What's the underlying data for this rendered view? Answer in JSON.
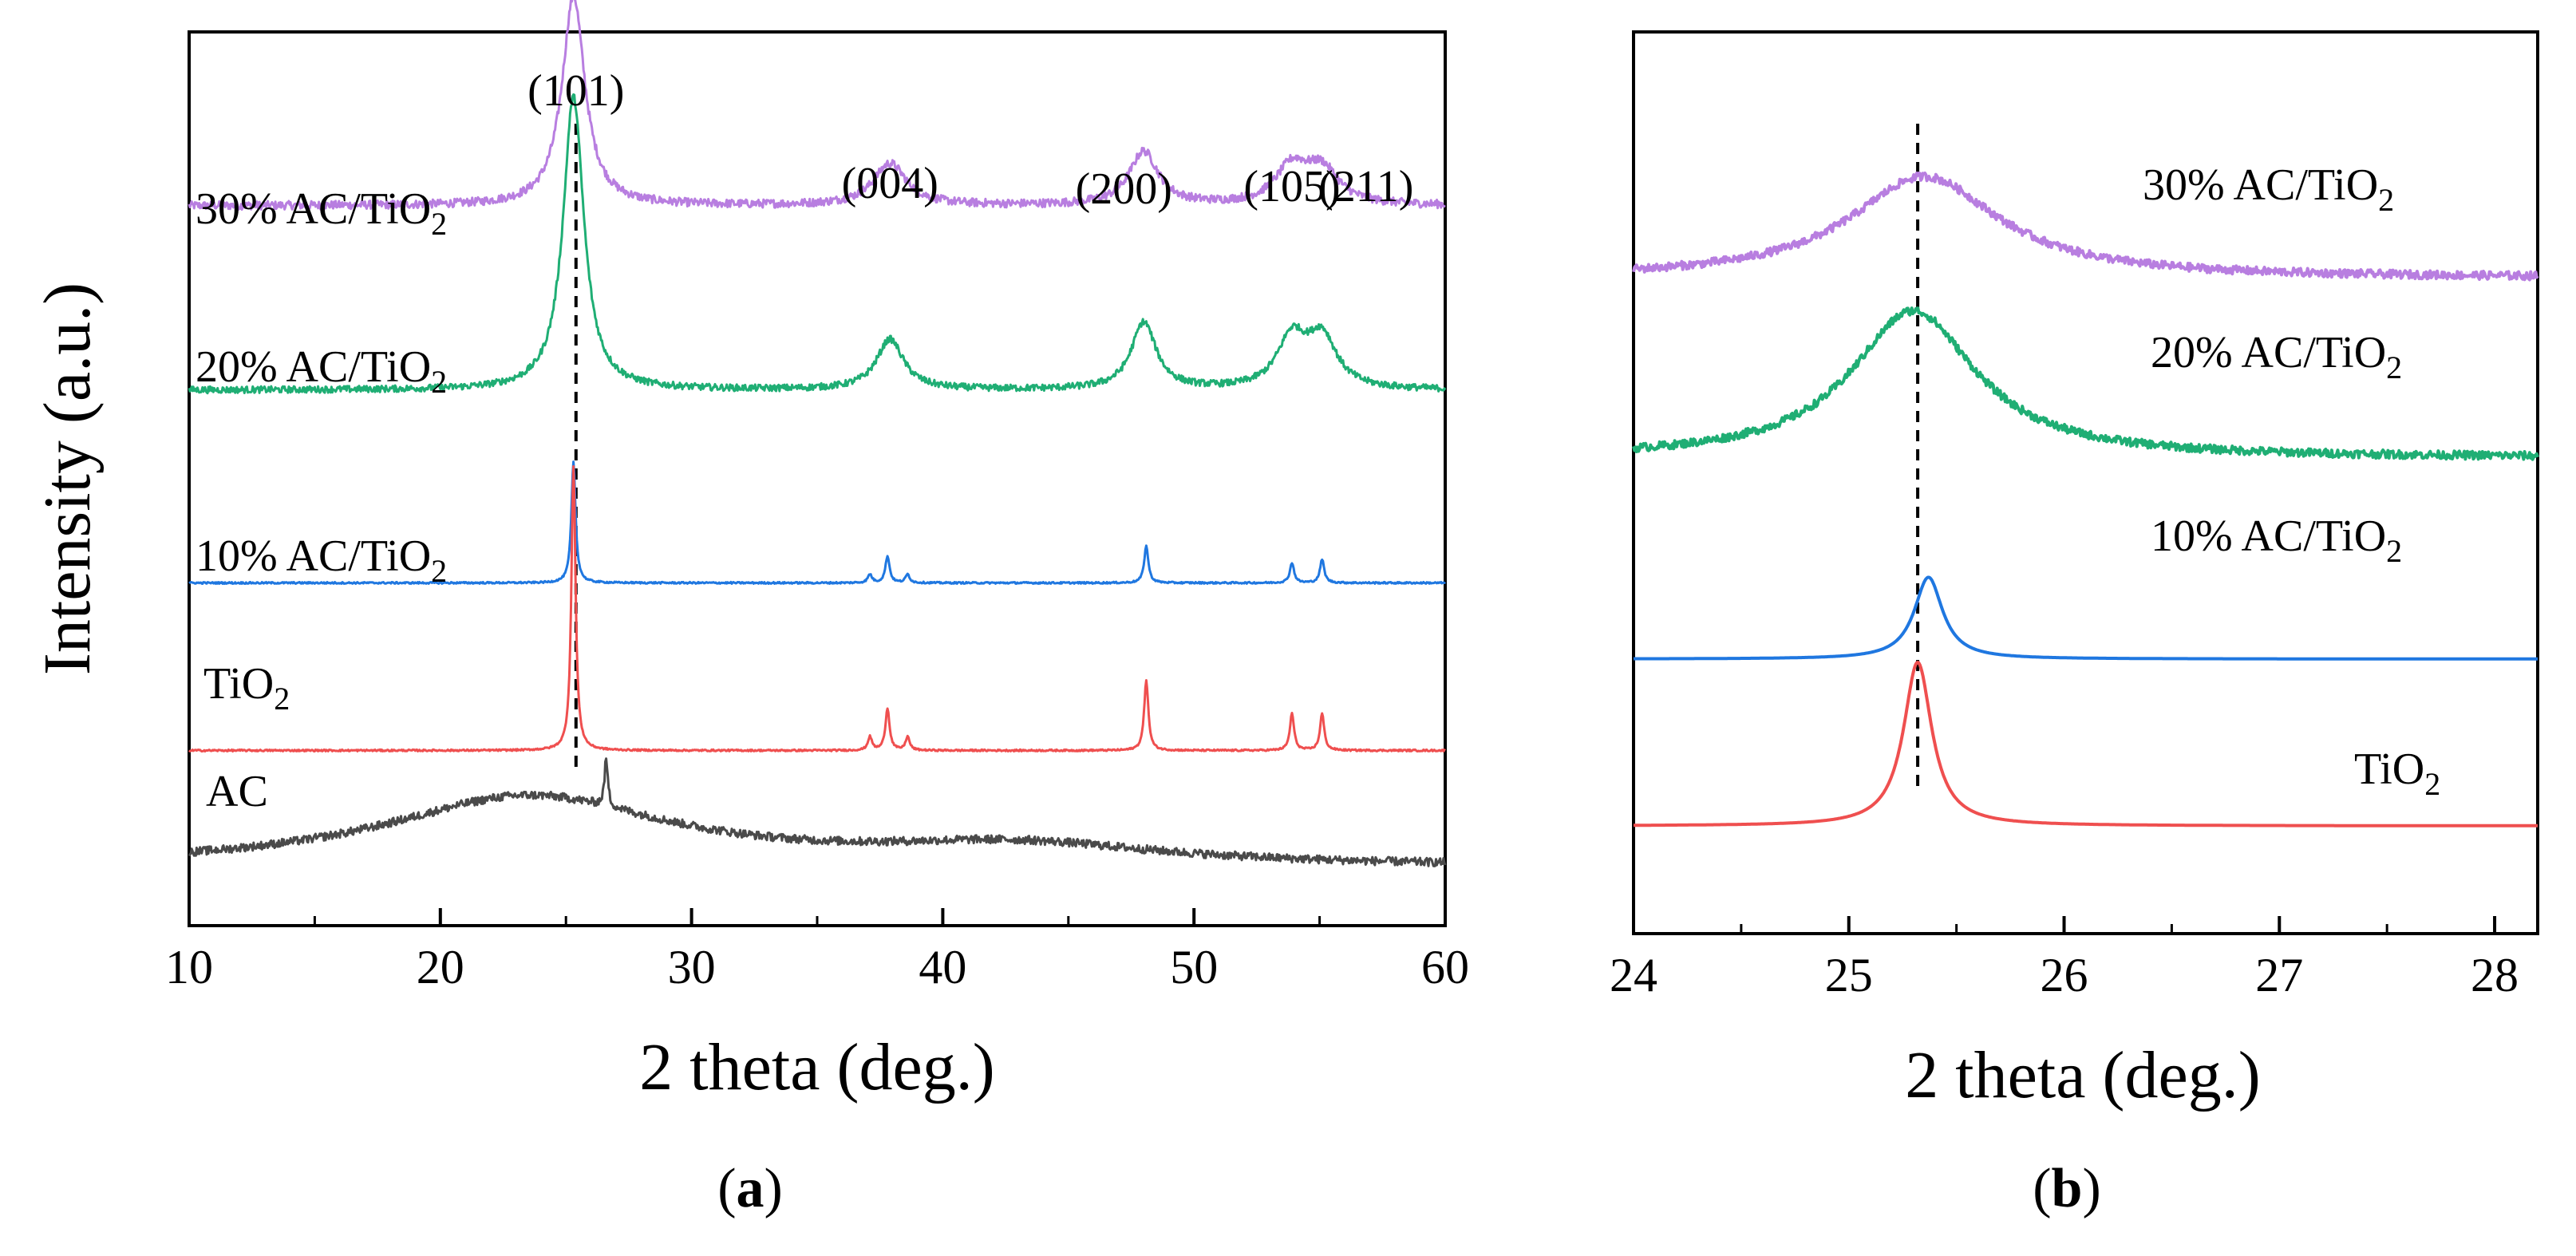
{
  "chart_data": [
    {
      "type": "line",
      "panel_label": "a",
      "xlabel": "2 theta (deg.)",
      "ylabel": "Intensity (a.u.)",
      "xlim": [
        10,
        60
      ],
      "xticks": [
        10,
        20,
        30,
        40,
        50,
        60
      ],
      "y_ticks_shown": false,
      "reference_line_x": 25.4,
      "peak_labels": [
        {
          "text": "(101)",
          "x": 25.4
        },
        {
          "text": "(004)",
          "x": 37.9
        },
        {
          "text": "(200)",
          "x": 48.0
        },
        {
          "text": "(105)",
          "x": 53.9
        },
        {
          "text": "(211)",
          "x": 55.1
        }
      ],
      "series": [
        {
          "name": "30% AC/TiO2",
          "color": "#b87ee0",
          "baseline": 4.2,
          "noise": 0.05,
          "peaks": [
            [
              25.3,
              1.25,
              0.55
            ],
            [
              37.9,
              0.25,
              0.8
            ],
            [
              48.0,
              0.32,
              0.7
            ],
            [
              53.9,
              0.22,
              0.8
            ],
            [
              55.1,
              0.2,
              0.8
            ]
          ]
        },
        {
          "name": "20% AC/TiO2",
          "color": "#1fae74",
          "baseline": 3.1,
          "noise": 0.04,
          "peaks": [
            [
              25.3,
              1.75,
              0.5
            ],
            [
              37.9,
              0.3,
              0.65
            ],
            [
              48.0,
              0.4,
              0.6
            ],
            [
              53.9,
              0.3,
              0.7
            ],
            [
              55.1,
              0.3,
              0.7
            ]
          ]
        },
        {
          "name": "10% AC/TiO2",
          "color": "#1f77e0",
          "baseline": 1.95,
          "noise": 0.01,
          "peaks": [
            [
              25.3,
              0.72,
              0.1
            ],
            [
              37.1,
              0.05,
              0.1
            ],
            [
              37.8,
              0.16,
              0.1
            ],
            [
              38.6,
              0.05,
              0.1
            ],
            [
              48.1,
              0.22,
              0.1
            ],
            [
              53.9,
              0.12,
              0.1
            ],
            [
              55.1,
              0.14,
              0.1
            ]
          ]
        },
        {
          "name": "TiO2",
          "color": "#ef4f4f",
          "baseline": 0.95,
          "noise": 0.01,
          "peaks": [
            [
              25.3,
              1.7,
              0.1
            ],
            [
              37.1,
              0.08,
              0.1
            ],
            [
              37.8,
              0.25,
              0.1
            ],
            [
              38.6,
              0.08,
              0.1
            ],
            [
              48.1,
              0.42,
              0.1
            ],
            [
              53.9,
              0.22,
              0.1
            ],
            [
              55.1,
              0.22,
              0.1
            ]
          ]
        },
        {
          "name": "AC",
          "color": "#4a4a4a",
          "baseline": 0.25,
          "noise": 0.05,
          "peaks": [
            [
              23.5,
              0.42,
              7.0
            ],
            [
              43.0,
              0.12,
              7.0
            ],
            [
              26.6,
              0.28,
              0.08
            ]
          ]
        }
      ]
    },
    {
      "type": "line",
      "panel_label": "b",
      "xlabel": "2 theta (deg.)",
      "xlim": [
        24,
        28.2
      ],
      "xticks": [
        24,
        25,
        26,
        27,
        28
      ],
      "y_ticks_shown": false,
      "reference_line_x": 25.32,
      "series": [
        {
          "name": "30% AC/TiO2",
          "color": "#b87ee0",
          "baseline": 3.35,
          "noise": 0.05,
          "peaks": [
            [
              25.35,
              0.62,
              0.42
            ]
          ]
        },
        {
          "name": "20% AC/TiO2",
          "color": "#1fae74",
          "baseline": 2.25,
          "noise": 0.05,
          "peaks": [
            [
              25.3,
              0.9,
              0.35
            ]
          ]
        },
        {
          "name": "10% AC/TiO2",
          "color": "#1f77e0",
          "baseline": 1.02,
          "noise": 0.0,
          "peaks": [
            [
              25.37,
              0.5,
              0.08
            ]
          ]
        },
        {
          "name": "TiO2",
          "color": "#ef4f4f",
          "baseline": 0.0,
          "noise": 0.0,
          "peaks": [
            [
              25.32,
              1.0,
              0.08
            ]
          ]
        }
      ]
    }
  ]
}
